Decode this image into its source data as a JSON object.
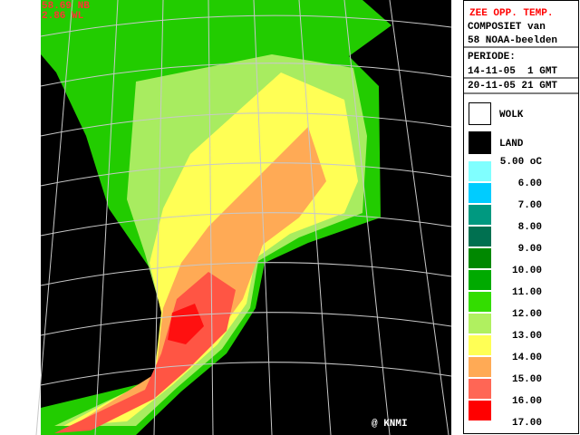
{
  "map": {
    "corner": [
      "58.69 NB",
      "2.86 WL"
    ],
    "credit": "@ KNMI"
  },
  "legend": {
    "title": "ZEE OPP. TEMP.",
    "lines": [
      "COMPOSIET van",
      "58 NOAA-beelden"
    ],
    "period": [
      "PERIODE:",
      "14-11-05  1 GMT",
      "20-11-05 21 GMT"
    ],
    "cloud": "WOLK",
    "land": "LAND",
    "scale": [
      "5.00 oC",
      "6.00",
      "7.00",
      "8.00",
      "9.00",
      "10.00",
      "11.00",
      "12.00",
      "13.00",
      "14.00",
      "15.00",
      "16.00",
      "17.00"
    ],
    "colors": [
      "#80ffff",
      "#00ccff",
      "#009980",
      "#007050",
      "#008800",
      "#00aa00",
      "#33dd00",
      "#b0f060",
      "#ffff55",
      "#ffaa55",
      "#ff6655",
      "#ff0000",
      "#880000"
    ]
  }
}
